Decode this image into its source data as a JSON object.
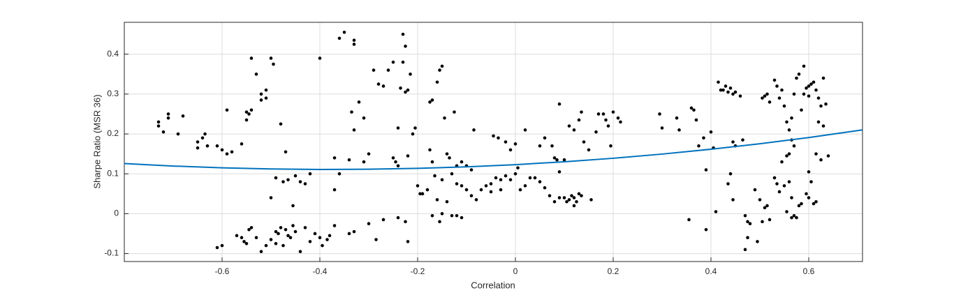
{
  "chart_data": {
    "type": "scatter",
    "xlabel": "Correlation",
    "ylabel": "Sharpe Ratio (MSR 36)",
    "xlim": [
      -0.8,
      0.71
    ],
    "ylim": [
      -0.12,
      0.48
    ],
    "xticks": [
      -0.6,
      -0.4,
      -0.2,
      0,
      0.2,
      0.4,
      0.6
    ],
    "yticks": [
      -0.1,
      0,
      0.1,
      0.2,
      0.3,
      0.4
    ],
    "grid": true,
    "color": "#000000",
    "x": [
      -0.73,
      -0.73,
      -0.72,
      -0.71,
      -0.71,
      -0.69,
      -0.68,
      -0.65,
      -0.65,
      -0.64,
      -0.635,
      -0.63,
      -0.61,
      -0.6,
      -0.59,
      -0.59,
      -0.58,
      -0.55,
      -0.56,
      -0.54,
      -0.53,
      -0.52,
      -0.51,
      -0.51,
      -0.52,
      -0.54,
      -0.545,
      -0.55,
      -0.5,
      -0.495,
      -0.48,
      -0.47,
      -0.5,
      -0.61,
      -0.6,
      -0.57,
      -0.56,
      -0.555,
      -0.55,
      -0.545,
      -0.54,
      -0.53,
      -0.52,
      -0.51,
      -0.5,
      -0.49,
      -0.485,
      -0.48,
      -0.47,
      -0.465,
      -0.46,
      -0.455,
      -0.45,
      -0.44,
      -0.43,
      -0.42,
      -0.41,
      -0.4,
      -0.395,
      -0.385,
      -0.38,
      -0.475,
      -0.49,
      -0.475,
      -0.465,
      -0.45,
      -0.44,
      -0.43,
      -0.42,
      -0.455,
      -0.49,
      -0.4,
      -0.36,
      -0.35,
      -0.33,
      -0.33,
      -0.335,
      -0.33,
      -0.32,
      -0.31,
      -0.29,
      -0.28,
      -0.27,
      -0.26,
      -0.25,
      -0.24,
      -0.23,
      -0.225,
      -0.23,
      -0.235,
      -0.225,
      -0.22,
      -0.215,
      -0.21,
      -0.205,
      -0.25,
      -0.245,
      -0.24,
      -0.3,
      -0.31,
      -0.37,
      -0.36,
      -0.37,
      -0.34,
      -0.33,
      -0.34,
      -0.37,
      -0.3,
      -0.285,
      -0.27,
      -0.24,
      -0.225,
      -0.22,
      -0.22,
      -0.2,
      -0.195,
      -0.19,
      -0.175,
      -0.17,
      -0.16,
      -0.155,
      -0.15,
      -0.145,
      -0.125,
      -0.175,
      -0.17,
      -0.165,
      -0.15,
      -0.14,
      -0.135,
      -0.12,
      -0.11,
      -0.1,
      -0.09,
      -0.13,
      -0.12,
      -0.11,
      -0.1,
      -0.09,
      -0.08,
      -0.085,
      -0.06,
      -0.05,
      -0.045,
      -0.035,
      -0.04,
      -0.03,
      -0.02,
      -0.01,
      0,
      0.005,
      -0.17,
      -0.155,
      -0.15,
      -0.13,
      -0.12,
      -0.11,
      -0.18,
      -0.16,
      -0.14,
      -0.07,
      -0.05,
      -0.03,
      -0.02,
      -0.01,
      0,
      0.01,
      0.02,
      0.03,
      0.02,
      0.05,
      0.06,
      0.08,
      0.085,
      0.09,
      0.1,
      0.11,
      0.12,
      0.13,
      0.135,
      0.14,
      0.15,
      0.165,
      0.17,
      0.18,
      0.185,
      0.19,
      0.195,
      0.2,
      0.21,
      0.215,
      0.1,
      0.105,
      0.11,
      0.12,
      0.125,
      0.13,
      0.135,
      0.155,
      0.08,
      0.09,
      0.07,
      0.06,
      0.05,
      0.04,
      0.115,
      0.12,
      0.09,
      0.075,
      0.295,
      0.3,
      0.33,
      0.335,
      0.36,
      0.365,
      0.37,
      0.375,
      0.385,
      0.39,
      0.355,
      0.39,
      0.4,
      0.405,
      0.415,
      0.42,
      0.425,
      0.43,
      0.435,
      0.44,
      0.445,
      0.45,
      0.46,
      0.445,
      0.45,
      0.465,
      0.44,
      0.435,
      0.445,
      0.41,
      0.47,
      0.475,
      0.48,
      0.49,
      0.495,
      0.47,
      0.475,
      0.5,
      0.505,
      0.51,
      0.515,
      0.52,
      0.53,
      0.535,
      0.54,
      0.505,
      0.51,
      0.515,
      0.52,
      0.53,
      0.535,
      0.54,
      0.545,
      0.55,
      0.555,
      0.56,
      0.565,
      0.57,
      0.575,
      0.58,
      0.585,
      0.59,
      0.595,
      0.6,
      0.605,
      0.61,
      0.615,
      0.62,
      0.625,
      0.63,
      0.635,
      0.64,
      0.625,
      0.615,
      0.6,
      0.605,
      0.56,
      0.555,
      0.565,
      0.57,
      0.545,
      0.55,
      0.56,
      0.565,
      0.57,
      0.575,
      0.58,
      0.585,
      0.595,
      0.6,
      0.61,
      0.615,
      0.62,
      0.63,
      0.6,
      0.59,
      0.555,
      0.565
    ],
    "values": [
      0.22,
      0.23,
      0.205,
      0.24,
      0.25,
      0.2,
      0.245,
      0.165,
      0.18,
      0.19,
      0.2,
      0.17,
      0.17,
      0.16,
      0.15,
      0.26,
      0.155,
      0.255,
      0.175,
      0.39,
      0.35,
      0.3,
      0.31,
      0.29,
      0.285,
      0.26,
      0.25,
      0.235,
      0.39,
      0.375,
      0.225,
      0.155,
      0.04,
      -0.085,
      -0.08,
      -0.055,
      -0.06,
      -0.07,
      -0.075,
      -0.04,
      -0.035,
      -0.06,
      -0.095,
      -0.08,
      -0.065,
      -0.045,
      -0.05,
      -0.035,
      -0.04,
      -0.055,
      -0.06,
      -0.03,
      -0.045,
      -0.095,
      -0.035,
      -0.07,
      -0.05,
      -0.06,
      -0.08,
      -0.065,
      -0.055,
      -0.08,
      -0.075,
      0.08,
      0.085,
      0.095,
      0.08,
      0.075,
      0.1,
      0.02,
      0.09,
      0.39,
      0.44,
      0.455,
      0.435,
      0.425,
      0.255,
      0.21,
      0.28,
      0.24,
      0.36,
      0.325,
      0.32,
      0.36,
      0.38,
      0.215,
      0.45,
      0.42,
      0.38,
      0.315,
      0.305,
      0.31,
      0.35,
      0.2,
      0.215,
      0.14,
      0.13,
      0.12,
      0.15,
      0.13,
      0.14,
      0.1,
      0.06,
      0.135,
      -0.045,
      -0.05,
      -0.03,
      -0.025,
      -0.065,
      -0.015,
      -0.01,
      -0.02,
      -0.07,
      0.145,
      0.07,
      0.05,
      0.05,
      0.28,
      0.285,
      0.33,
      0.36,
      0.37,
      0.24,
      0.255,
      0.16,
      0.13,
      0.095,
      0.085,
      0.15,
      0.14,
      0.12,
      0.13,
      0.12,
      0.11,
      0.1,
      0.075,
      0.07,
      0.06,
      0.045,
      0.035,
      0.21,
      0.07,
      0.075,
      0.195,
      0.19,
      0.09,
      0.085,
      0.095,
      0.085,
      0.1,
      0.115,
      -0.005,
      -0.02,
      0,
      -0.005,
      -0.005,
      -0.01,
      0.06,
      0.035,
      0.03,
      0.06,
      0.055,
      0.06,
      0.18,
      0.16,
      0.175,
      0.06,
      0.07,
      0.09,
      0.21,
      0.17,
      0.19,
      0.14,
      0.135,
      0.275,
      0.135,
      0.22,
      0.21,
      0.235,
      0.255,
      0.18,
      0.16,
      0.205,
      0.25,
      0.25,
      0.235,
      0.22,
      0.17,
      0.255,
      0.24,
      0.23,
      0.04,
      0.03,
      0.035,
      0.04,
      0.03,
      0.05,
      0.045,
      0.035,
      0.03,
      0.04,
      0.045,
      0.065,
      0.08,
      0.09,
      0.045,
      0.02,
      0.105,
      0.17,
      0.25,
      0.215,
      0.24,
      0.21,
      0.265,
      0.26,
      0.235,
      0.17,
      0.19,
      0.11,
      -0.015,
      -0.04,
      0.205,
      0.165,
      0.33,
      0.31,
      0.31,
      0.32,
      0.305,
      0.315,
      0.3,
      0.305,
      0.295,
      0.18,
      0.17,
      0.185,
      0.1,
      0.075,
      0.035,
      0.005,
      -0.005,
      -0.02,
      -0.025,
      0.06,
      -0.07,
      -0.09,
      -0.06,
      0.035,
      -0.02,
      0.015,
      0.02,
      -0.015,
      0.09,
      0.075,
      0.055,
      0.29,
      0.295,
      0.3,
      0.28,
      0.335,
      0.32,
      0.29,
      0.31,
      0.27,
      0.23,
      0.21,
      0.24,
      0.3,
      0.34,
      0.35,
      0.26,
      0.3,
      0.315,
      0.32,
      0.325,
      0.33,
      0.31,
      0.29,
      0.27,
      0.34,
      0.275,
      0.145,
      0.135,
      0.15,
      0.105,
      0.08,
      0.15,
      0.145,
      0.185,
      0.17,
      0.13,
      0.07,
      0.08,
      0.04,
      -0.005,
      -0.01,
      0.02,
      0.025,
      0.05,
      0.04,
      0.025,
      0.03,
      0.23,
      0.22,
      0.295,
      0.37,
      0.005,
      -0.01
    ],
    "fit": {
      "color": "#0072bd",
      "x": [
        -0.8,
        -0.7,
        -0.6,
        -0.5,
        -0.4,
        -0.3,
        -0.2,
        -0.1,
        0,
        0.1,
        0.2,
        0.3,
        0.4,
        0.5,
        0.6,
        0.71
      ],
      "values": [
        0.1257,
        0.1195,
        0.115,
        0.1122,
        0.111,
        0.1115,
        0.1137,
        0.1175,
        0.123,
        0.1302,
        0.139,
        0.1495,
        0.1617,
        0.1755,
        0.191,
        0.2102
      ]
    }
  }
}
